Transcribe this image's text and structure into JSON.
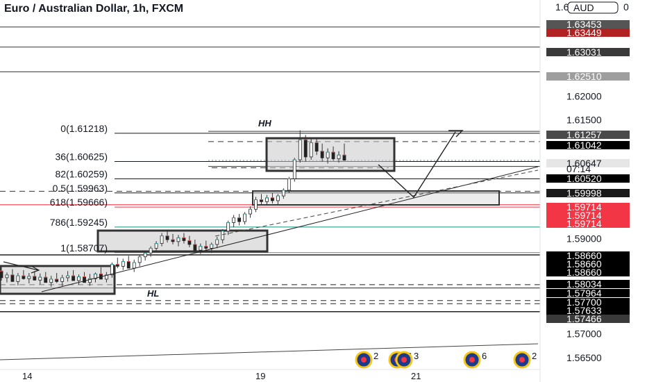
{
  "chart_data": {
    "type": "candlestick",
    "title": "Euro / Australian Dollar, 1h, FXCM",
    "currency_label": "AUD",
    "ylim": [
      1.5625,
      1.6402
    ],
    "price_axis": {
      "ticks": [
        "1.62000",
        "1.61500",
        "1.59000",
        "1.57000",
        "1.56500"
      ],
      "tick_values": [
        1.62,
        1.615,
        1.59,
        1.57,
        1.565
      ],
      "top_partial": "1.6",
      "top_partial_suffix": "0"
    },
    "time_axis": {
      "labels": [
        "14",
        "19",
        "21"
      ]
    },
    "price_badges": [
      {
        "label": "1.63453",
        "value": 1.63453,
        "bg": "#555555",
        "fg": "#ffffff"
      },
      {
        "label": "1.63449",
        "value": 1.63449,
        "bg": "#b22222",
        "fg": "#ffffff"
      },
      {
        "label": "1.63031",
        "value": 1.63031,
        "bg": "#3a3a3a",
        "fg": "#ffffff"
      },
      {
        "label": "1.62510",
        "value": 1.6251,
        "bg": "#9e9e9e",
        "fg": "#ffffff"
      },
      {
        "label": "1.61257",
        "value": 1.61257,
        "bg": "#4a4a4a",
        "fg": "#ffffff"
      },
      {
        "label": "1.61042",
        "value": 1.61042,
        "bg": "#000000",
        "fg": "#ffffff"
      },
      {
        "label": "1.60647",
        "value": 1.60647,
        "bg": "#e6e6e6",
        "fg": "#131722"
      },
      {
        "label": "1.60520",
        "value": 1.6052,
        "bg": "#000000",
        "fg": "#ffffff"
      },
      {
        "label": "1.59998",
        "value": 1.59998,
        "bg": "#1a1a1a",
        "fg": "#ffffff"
      },
      {
        "label": "1.59714",
        "value": 1.59714,
        "bg": "#f23645",
        "fg": "#ffffff"
      },
      {
        "label": "1.59714",
        "value": 1.59714,
        "bg": "#f23645",
        "fg": "#ffffff"
      },
      {
        "label": "1.59714",
        "value": 1.59714,
        "bg": "#f23645",
        "fg": "#ffffff"
      },
      {
        "label": "1.58660",
        "value": 1.5866,
        "bg": "#000000",
        "fg": "#ffffff"
      },
      {
        "label": "1.58660",
        "value": 1.5866,
        "bg": "#000000",
        "fg": "#ffffff"
      },
      {
        "label": "1.58660",
        "value": 1.5866,
        "bg": "#000000",
        "fg": "#ffffff"
      },
      {
        "label": "1.58034",
        "value": 1.58034,
        "bg": "#000000",
        "fg": "#ffffff"
      },
      {
        "label": "1.57964",
        "value": 1.57964,
        "bg": "#000000",
        "fg": "#ffffff"
      },
      {
        "label": "1.57700",
        "value": 1.577,
        "bg": "#000000",
        "fg": "#ffffff"
      },
      {
        "label": "1.57633",
        "value": 1.57633,
        "bg": "#000000",
        "fg": "#ffffff"
      },
      {
        "label": "1.57466",
        "value": 1.57466,
        "bg": "#3a3a3a",
        "fg": "#ffffff"
      }
    ],
    "countdown": "07:14",
    "fib_labels": [
      {
        "text": "0(1.61218)",
        "value": 1.61218,
        "color": "#131722"
      },
      {
        "text": "36(1.60625)",
        "value": 1.60625,
        "color": "#131722"
      },
      {
        "text": "82(1.60259)",
        "value": 1.60259,
        "color": "#131722"
      },
      {
        "text": "0.5(1.59963)",
        "value": 1.59963,
        "color": "#131722"
      },
      {
        "text": "618(1.59666)",
        "value": 1.59666,
        "color": "#f23645"
      },
      {
        "text": "786(1.59245)",
        "value": 1.59245,
        "color": "#089981"
      },
      {
        "text": "1(1.58707)",
        "value": 1.58707,
        "color": "#787b86"
      }
    ],
    "annotations": [
      "HH",
      "HL"
    ],
    "event_markers": [
      "2",
      "6",
      "3",
      "6",
      "2"
    ],
    "candles": [
      [
        1.5832,
        1.5842,
        1.5812,
        1.5818
      ],
      [
        1.5818,
        1.5829,
        1.5808,
        1.5824
      ],
      [
        1.5824,
        1.5836,
        1.5815,
        1.581
      ],
      [
        1.581,
        1.5828,
        1.5802,
        1.5822
      ],
      [
        1.5822,
        1.5834,
        1.5814,
        1.5816
      ],
      [
        1.5816,
        1.5828,
        1.5806,
        1.5821
      ],
      [
        1.5821,
        1.5832,
        1.5812,
        1.5813
      ],
      [
        1.5813,
        1.5827,
        1.5804,
        1.5819
      ],
      [
        1.5819,
        1.583,
        1.581,
        1.5808
      ],
      [
        1.5808,
        1.5822,
        1.5799,
        1.5815
      ],
      [
        1.5815,
        1.5828,
        1.5807,
        1.581
      ],
      [
        1.581,
        1.5824,
        1.58,
        1.5818
      ],
      [
        1.5818,
        1.5832,
        1.581,
        1.5822
      ],
      [
        1.5822,
        1.5834,
        1.5813,
        1.5812
      ],
      [
        1.5812,
        1.5825,
        1.5804,
        1.582
      ],
      [
        1.582,
        1.583,
        1.5811,
        1.5808
      ],
      [
        1.5808,
        1.5826,
        1.5801,
        1.5816
      ],
      [
        1.5816,
        1.5829,
        1.5808,
        1.5826
      ],
      [
        1.5826,
        1.584,
        1.5818,
        1.5815
      ],
      [
        1.5815,
        1.583,
        1.5808,
        1.5824
      ],
      [
        1.5824,
        1.585,
        1.5818,
        1.5846
      ],
      [
        1.5846,
        1.586,
        1.5838,
        1.5842
      ],
      [
        1.5842,
        1.5858,
        1.5834,
        1.5852
      ],
      [
        1.5852,
        1.5864,
        1.5844,
        1.5838
      ],
      [
        1.5838,
        1.5856,
        1.583,
        1.585
      ],
      [
        1.585,
        1.5866,
        1.5842,
        1.5862
      ],
      [
        1.5862,
        1.5875,
        1.5854,
        1.587
      ],
      [
        1.587,
        1.5884,
        1.5862,
        1.588
      ],
      [
        1.588,
        1.5895,
        1.5874,
        1.589
      ],
      [
        1.589,
        1.5912,
        1.5884,
        1.5906
      ],
      [
        1.5906,
        1.5916,
        1.5892,
        1.5898
      ],
      [
        1.5898,
        1.591,
        1.5888,
        1.5894
      ],
      [
        1.5894,
        1.5908,
        1.5884,
        1.5902
      ],
      [
        1.5902,
        1.5912,
        1.589,
        1.5896
      ],
      [
        1.5896,
        1.5906,
        1.5882,
        1.5888
      ],
      [
        1.5888,
        1.5898,
        1.5872,
        1.5876
      ],
      [
        1.5876,
        1.589,
        1.5868,
        1.5884
      ],
      [
        1.5884,
        1.5896,
        1.5874,
        1.588
      ],
      [
        1.588,
        1.5892,
        1.587,
        1.5888
      ],
      [
        1.5888,
        1.5904,
        1.588,
        1.5898
      ],
      [
        1.5898,
        1.592,
        1.589,
        1.5916
      ],
      [
        1.5916,
        1.5938,
        1.5908,
        1.5934
      ],
      [
        1.5934,
        1.595,
        1.5924,
        1.5944
      ],
      [
        1.5944,
        1.5952,
        1.5928,
        1.5936
      ],
      [
        1.5936,
        1.5956,
        1.593,
        1.5952
      ],
      [
        1.5952,
        1.5968,
        1.5944,
        1.5962
      ],
      [
        1.5962,
        1.5988,
        1.5956,
        1.5982
      ],
      [
        1.5982,
        1.5994,
        1.5972,
        1.5978
      ],
      [
        1.5978,
        1.5992,
        1.597,
        1.5986
      ],
      [
        1.5986,
        1.5996,
        1.5974,
        1.598
      ],
      [
        1.598,
        1.5994,
        1.5972,
        1.599
      ],
      [
        1.599,
        1.6006,
        1.5984,
        1.6002
      ],
      [
        1.6002,
        1.603,
        1.5996,
        1.6026
      ],
      [
        1.6026,
        1.607,
        1.602,
        1.6066
      ],
      [
        1.6066,
        1.6128,
        1.606,
        1.6108
      ],
      [
        1.6108,
        1.6118,
        1.6062,
        1.6072
      ],
      [
        1.6072,
        1.611,
        1.6066,
        1.6102
      ],
      [
        1.6102,
        1.6112,
        1.6076,
        1.6084
      ],
      [
        1.6084,
        1.61,
        1.6062,
        1.607
      ],
      [
        1.607,
        1.609,
        1.6058,
        1.6082
      ],
      [
        1.6082,
        1.6094,
        1.6064,
        1.6068
      ],
      [
        1.6068,
        1.6084,
        1.606,
        1.6076
      ],
      [
        1.6076,
        1.61,
        1.6066,
        1.6065
      ]
    ]
  }
}
